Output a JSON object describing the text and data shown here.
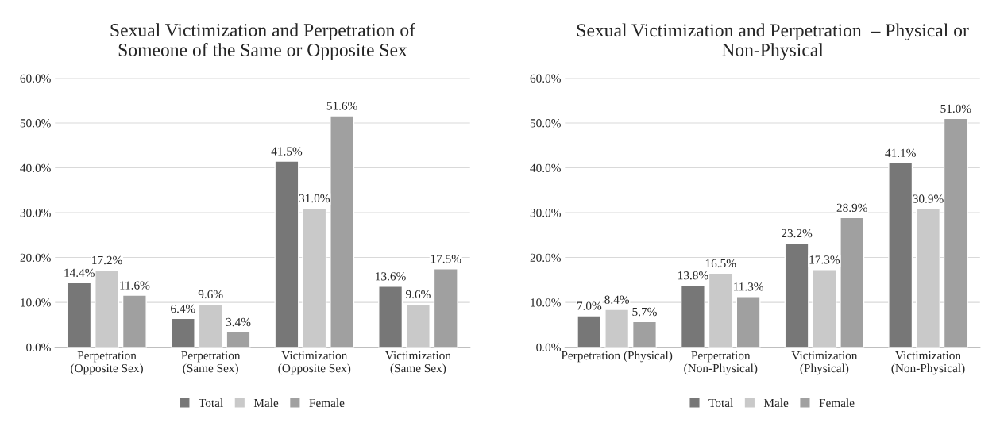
{
  "chart_data": [
    {
      "type": "bar",
      "title": "Sexual Victimization and Perpetration of\nSomeone of the Same or Opposite Sex",
      "categories": [
        "Perpetration\n(Opposite Sex)",
        "Perpetration\n(Same Sex)",
        "Victimization\n(Opposite Sex)",
        "Victimization\n(Same Sex)"
      ],
      "series": [
        {
          "name": "Total",
          "color": "#777777",
          "values": [
            14.4,
            6.4,
            41.5,
            13.6
          ],
          "value_labels": [
            "14.4%",
            "6.4%",
            "41.5%",
            "13.6%"
          ]
        },
        {
          "name": "Male",
          "color": "#c9c9c9",
          "values": [
            17.2,
            9.6,
            31.0,
            9.6
          ],
          "value_labels": [
            "17.2%",
            "9.6%",
            "31.0%",
            "9.6%"
          ]
        },
        {
          "name": "Female",
          "color": "#a0a0a0",
          "values": [
            11.6,
            3.4,
            51.6,
            17.5
          ],
          "value_labels": [
            "11.6%",
            "3.4%",
            "51.6%",
            "17.5%"
          ]
        }
      ],
      "ylim": [
        0,
        60
      ],
      "yticks": [
        {
          "value": 0,
          "label": "0.0%"
        },
        {
          "value": 10,
          "label": "10.0%"
        },
        {
          "value": 20,
          "label": "20.0%"
        },
        {
          "value": 30,
          "label": "30.0%"
        },
        {
          "value": 40,
          "label": "40.0%"
        },
        {
          "value": 50,
          "label": "50.0%"
        },
        {
          "value": 60,
          "label": "60.0%"
        }
      ],
      "grid": "y",
      "legend": "bottom"
    },
    {
      "type": "bar",
      "title": "Sexual Victimization and Perpetration  – Physical or\nNon-Physical",
      "categories": [
        "Perpetration (Physical)",
        "Perpetration\n(Non-Physical)",
        "Victimization\n(Physical)",
        "Victimization\n(Non-Physical)"
      ],
      "series": [
        {
          "name": "Total",
          "color": "#777777",
          "values": [
            7.0,
            13.8,
            23.2,
            41.1
          ],
          "value_labels": [
            "7.0%",
            "13.8%",
            "23.2%",
            "41.1%"
          ]
        },
        {
          "name": "Male",
          "color": "#c9c9c9",
          "values": [
            8.4,
            16.5,
            17.3,
            30.9
          ],
          "value_labels": [
            "8.4%",
            "16.5%",
            "17.3%",
            "30.9%"
          ]
        },
        {
          "name": "Female",
          "color": "#a0a0a0",
          "values": [
            5.7,
            11.3,
            28.9,
            51.0
          ],
          "value_labels": [
            "5.7%",
            "11.3%",
            "28.9%",
            "51.0%"
          ]
        }
      ],
      "ylim": [
        0,
        60
      ],
      "yticks": [
        {
          "value": 0,
          "label": "0.0%"
        },
        {
          "value": 10,
          "label": "10.0%"
        },
        {
          "value": 20,
          "label": "20.0%"
        },
        {
          "value": 30,
          "label": "30.0%"
        },
        {
          "value": 40,
          "label": "40.0%"
        },
        {
          "value": 50,
          "label": "50.0%"
        },
        {
          "value": 60,
          "label": "60.0%"
        }
      ],
      "grid": "y",
      "legend": "bottom"
    }
  ]
}
